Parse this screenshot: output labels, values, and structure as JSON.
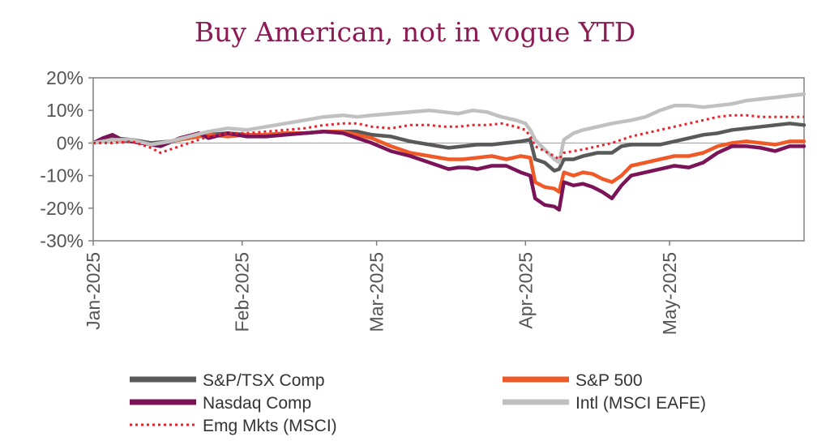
{
  "chart_data": {
    "type": "line",
    "title": "Buy American, not in vogue YTD",
    "xlabel": "",
    "ylabel": "",
    "ylim": [
      -30,
      20
    ],
    "yticks": [
      20,
      10,
      0,
      -10,
      -20,
      -30
    ],
    "ytick_format": "percent",
    "xlim": [
      0,
      148
    ],
    "xticks": [
      {
        "label": "Jan-2025",
        "day": 0
      },
      {
        "label": "Feb-2025",
        "day": 31
      },
      {
        "label": "Mar-2025",
        "day": 59
      },
      {
        "label": "Apr-2025",
        "day": 90
      },
      {
        "label": "May-2025",
        "day": 120
      }
    ],
    "x_unit": "days since 2025-01-01",
    "legend_position": "bottom",
    "grid": false,
    "series": [
      {
        "name": "S&P/TSX Comp",
        "color": "#595959",
        "style": "solid",
        "points": [
          [
            0,
            0
          ],
          [
            4,
            1.5
          ],
          [
            8,
            1
          ],
          [
            12,
            0
          ],
          [
            16,
            0.5
          ],
          [
            20,
            1.5
          ],
          [
            24,
            2.5
          ],
          [
            28,
            3
          ],
          [
            32,
            2.5
          ],
          [
            36,
            2.5
          ],
          [
            40,
            3
          ],
          [
            44,
            3
          ],
          [
            48,
            3.5
          ],
          [
            52,
            3.5
          ],
          [
            55,
            3.5
          ],
          [
            58,
            2.5
          ],
          [
            62,
            2
          ],
          [
            66,
            0.5
          ],
          [
            70,
            -0.5
          ],
          [
            74,
            -1.5
          ],
          [
            77,
            -1
          ],
          [
            80,
            -0.5
          ],
          [
            83,
            -0.5
          ],
          [
            86,
            0
          ],
          [
            89,
            0.5
          ],
          [
            91,
            1
          ],
          [
            92,
            -5
          ],
          [
            94,
            -6
          ],
          [
            96,
            -8.5
          ],
          [
            97,
            -8
          ],
          [
            98,
            -5
          ],
          [
            100,
            -5
          ],
          [
            102,
            -4
          ],
          [
            105,
            -3
          ],
          [
            108,
            -3
          ],
          [
            110,
            -1
          ],
          [
            112,
            -0.5
          ],
          [
            115,
            -0.5
          ],
          [
            118,
            -0.5
          ],
          [
            121,
            0.5
          ],
          [
            124,
            1.5
          ],
          [
            127,
            2.5
          ],
          [
            130,
            3
          ],
          [
            133,
            4
          ],
          [
            136,
            4.5
          ],
          [
            139,
            5
          ],
          [
            142,
            5.5
          ],
          [
            145,
            6
          ],
          [
            148,
            5.5
          ]
        ]
      },
      {
        "name": "S&P 500",
        "color": "#f05a28",
        "style": "solid",
        "points": [
          [
            0,
            0
          ],
          [
            4,
            1
          ],
          [
            8,
            0.5
          ],
          [
            12,
            -0.5
          ],
          [
            16,
            0.5
          ],
          [
            20,
            1.5
          ],
          [
            24,
            2.5
          ],
          [
            28,
            2
          ],
          [
            32,
            2.5
          ],
          [
            36,
            2.5
          ],
          [
            40,
            3
          ],
          [
            44,
            3
          ],
          [
            48,
            3.5
          ],
          [
            52,
            3.5
          ],
          [
            55,
            2.5
          ],
          [
            58,
            1.5
          ],
          [
            62,
            -1
          ],
          [
            66,
            -3
          ],
          [
            70,
            -4
          ],
          [
            74,
            -5
          ],
          [
            77,
            -5
          ],
          [
            80,
            -4.5
          ],
          [
            83,
            -4
          ],
          [
            86,
            -5
          ],
          [
            89,
            -4
          ],
          [
            91,
            -4.5
          ],
          [
            92,
            -12
          ],
          [
            94,
            -13.5
          ],
          [
            96,
            -14
          ],
          [
            97,
            -15
          ],
          [
            98,
            -9
          ],
          [
            100,
            -10
          ],
          [
            102,
            -9
          ],
          [
            104,
            -9.5
          ],
          [
            106,
            -11
          ],
          [
            108,
            -12
          ],
          [
            110,
            -10
          ],
          [
            112,
            -7
          ],
          [
            115,
            -6
          ],
          [
            118,
            -5
          ],
          [
            121,
            -4
          ],
          [
            124,
            -4
          ],
          [
            127,
            -3
          ],
          [
            130,
            -1
          ],
          [
            133,
            0
          ],
          [
            136,
            0.5
          ],
          [
            139,
            0
          ],
          [
            142,
            -0.5
          ],
          [
            145,
            0.5
          ],
          [
            148,
            0.5
          ]
        ]
      },
      {
        "name": "Nasdaq Comp",
        "color": "#7a1358",
        "style": "solid",
        "points": [
          [
            0,
            0
          ],
          [
            2,
            1.5
          ],
          [
            4,
            2.5
          ],
          [
            6,
            1
          ],
          [
            10,
            0
          ],
          [
            14,
            -1
          ],
          [
            18,
            1.5
          ],
          [
            22,
            3
          ],
          [
            24,
            1.5
          ],
          [
            28,
            3
          ],
          [
            32,
            2
          ],
          [
            36,
            2
          ],
          [
            40,
            2.5
          ],
          [
            44,
            3
          ],
          [
            48,
            3.5
          ],
          [
            52,
            3
          ],
          [
            55,
            1.5
          ],
          [
            58,
            0
          ],
          [
            62,
            -2.5
          ],
          [
            66,
            -4
          ],
          [
            70,
            -6
          ],
          [
            74,
            -8
          ],
          [
            76,
            -7.5
          ],
          [
            78,
            -7.5
          ],
          [
            80,
            -8
          ],
          [
            83,
            -7
          ],
          [
            86,
            -7
          ],
          [
            89,
            -9
          ],
          [
            91,
            -10
          ],
          [
            92,
            -17
          ],
          [
            94,
            -19
          ],
          [
            96,
            -19.5
          ],
          [
            97,
            -20.5
          ],
          [
            98,
            -12
          ],
          [
            100,
            -13
          ],
          [
            102,
            -12.5
          ],
          [
            104,
            -13.5
          ],
          [
            106,
            -15
          ],
          [
            108,
            -17
          ],
          [
            110,
            -13
          ],
          [
            112,
            -10
          ],
          [
            115,
            -9
          ],
          [
            118,
            -8
          ],
          [
            121,
            -7
          ],
          [
            124,
            -7.5
          ],
          [
            127,
            -6
          ],
          [
            130,
            -3
          ],
          [
            133,
            -1
          ],
          [
            136,
            -1
          ],
          [
            139,
            -1.5
          ],
          [
            142,
            -2.5
          ],
          [
            145,
            -1
          ],
          [
            148,
            -1
          ]
        ]
      },
      {
        "name": "Intl (MSCI EAFE)",
        "color": "#c0c0c0",
        "style": "solid",
        "points": [
          [
            0,
            0
          ],
          [
            4,
            1
          ],
          [
            8,
            1
          ],
          [
            12,
            -0.5
          ],
          [
            16,
            0.5
          ],
          [
            20,
            2
          ],
          [
            24,
            3.5
          ],
          [
            28,
            4.5
          ],
          [
            32,
            4
          ],
          [
            36,
            5
          ],
          [
            40,
            6
          ],
          [
            44,
            7
          ],
          [
            48,
            8
          ],
          [
            52,
            8.5
          ],
          [
            55,
            8
          ],
          [
            58,
            8.5
          ],
          [
            62,
            9
          ],
          [
            66,
            9.5
          ],
          [
            70,
            10
          ],
          [
            73,
            9.5
          ],
          [
            76,
            9
          ],
          [
            79,
            10
          ],
          [
            82,
            9.5
          ],
          [
            85,
            8
          ],
          [
            88,
            7
          ],
          [
            90,
            6
          ],
          [
            91,
            4
          ],
          [
            92,
            1
          ],
          [
            94,
            -2
          ],
          [
            96,
            -5
          ],
          [
            97,
            -6
          ],
          [
            98,
            1
          ],
          [
            100,
            3
          ],
          [
            102,
            4
          ],
          [
            105,
            5
          ],
          [
            108,
            6
          ],
          [
            110,
            6.5
          ],
          [
            112,
            7
          ],
          [
            115,
            8
          ],
          [
            118,
            10
          ],
          [
            121,
            11.5
          ],
          [
            124,
            11.5
          ],
          [
            127,
            11
          ],
          [
            130,
            11.5
          ],
          [
            133,
            12
          ],
          [
            136,
            13
          ],
          [
            139,
            13.5
          ],
          [
            142,
            14
          ],
          [
            145,
            14.5
          ],
          [
            148,
            15
          ]
        ]
      },
      {
        "name": "Emg Mkts (MSCI)",
        "color": "#e8222a",
        "style": "dotted",
        "points": [
          [
            0,
            0
          ],
          [
            4,
            0
          ],
          [
            8,
            0.5
          ],
          [
            12,
            -1.5
          ],
          [
            14,
            -3
          ],
          [
            16,
            -2
          ],
          [
            20,
            0
          ],
          [
            24,
            2
          ],
          [
            28,
            3
          ],
          [
            32,
            3
          ],
          [
            36,
            3.5
          ],
          [
            40,
            4
          ],
          [
            44,
            4.5
          ],
          [
            48,
            5.5
          ],
          [
            52,
            6
          ],
          [
            55,
            6
          ],
          [
            58,
            5
          ],
          [
            62,
            4.5
          ],
          [
            66,
            5.5
          ],
          [
            70,
            5.5
          ],
          [
            73,
            5
          ],
          [
            76,
            5
          ],
          [
            79,
            5.5
          ],
          [
            82,
            5.5
          ],
          [
            85,
            6
          ],
          [
            88,
            5
          ],
          [
            90,
            4
          ],
          [
            91,
            2
          ],
          [
            92,
            -1
          ],
          [
            94,
            -2.5
          ],
          [
            96,
            -4
          ],
          [
            97,
            -5
          ],
          [
            98,
            -3
          ],
          [
            100,
            -2.5
          ],
          [
            102,
            -2
          ],
          [
            105,
            -1
          ],
          [
            108,
            0
          ],
          [
            110,
            1
          ],
          [
            112,
            2
          ],
          [
            115,
            3
          ],
          [
            118,
            4
          ],
          [
            121,
            5
          ],
          [
            124,
            6
          ],
          [
            127,
            7
          ],
          [
            130,
            8
          ],
          [
            133,
            8.5
          ],
          [
            136,
            8.5
          ],
          [
            139,
            8
          ],
          [
            142,
            8
          ],
          [
            145,
            8
          ],
          [
            148,
            8
          ]
        ]
      }
    ],
    "legend": {
      "items": [
        {
          "label": "S&P/TSX Comp"
        },
        {
          "label": "S&P 500"
        },
        {
          "label": "Nasdaq Comp"
        },
        {
          "label": "Intl (MSCI EAFE)"
        },
        {
          "label": "Emg Mkts (MSCI)"
        }
      ]
    }
  }
}
